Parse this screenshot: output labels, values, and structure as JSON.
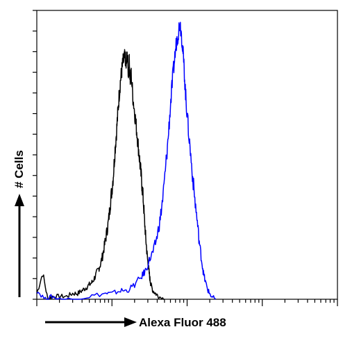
{
  "chart_data": {
    "type": "line",
    "title": "",
    "xlabel": "Alexa Fluor 488",
    "ylabel": "# Cells",
    "x_scale": "log",
    "xlim": [
      1,
      10000
    ],
    "ylim": [
      0,
      100
    ],
    "grid": false,
    "legend": "none",
    "series": [
      {
        "color": "#000000",
        "points": [
          [
            1.0,
            2
          ],
          [
            1.2,
            9
          ],
          [
            1.4,
            0
          ],
          [
            1.6,
            1
          ],
          [
            2.0,
            1
          ],
          [
            2.5,
            1
          ],
          [
            3.0,
            2
          ],
          [
            3.5,
            2
          ],
          [
            4.0,
            3
          ],
          [
            4.5,
            4
          ],
          [
            5.0,
            5
          ],
          [
            5.5,
            6
          ],
          [
            6.0,
            8
          ],
          [
            6.5,
            10
          ],
          [
            7.0,
            12
          ],
          [
            7.5,
            15
          ],
          [
            8.0,
            19
          ],
          [
            8.5,
            23
          ],
          [
            9.0,
            27
          ],
          [
            9.5,
            33
          ],
          [
            10.0,
            38
          ],
          [
            10.5,
            44
          ],
          [
            11.0,
            52
          ],
          [
            11.5,
            58
          ],
          [
            12.0,
            65
          ],
          [
            12.5,
            71
          ],
          [
            13.0,
            76
          ],
          [
            13.5,
            79
          ],
          [
            14.0,
            82
          ],
          [
            14.5,
            83
          ],
          [
            15.0,
            84
          ],
          [
            15.5,
            80
          ],
          [
            16.0,
            85
          ],
          [
            16.5,
            78
          ],
          [
            17.0,
            82
          ],
          [
            17.5,
            76
          ],
          [
            18.0,
            78
          ],
          [
            19.0,
            70
          ],
          [
            20.0,
            65
          ],
          [
            21.0,
            60
          ],
          [
            22.0,
            55
          ],
          [
            23.0,
            50
          ],
          [
            24.0,
            45
          ],
          [
            25.0,
            40
          ],
          [
            26.0,
            35
          ],
          [
            27.0,
            28
          ],
          [
            28.0,
            22
          ],
          [
            29.0,
            17
          ],
          [
            30.0,
            13
          ],
          [
            31.0,
            10
          ],
          [
            32.0,
            7
          ],
          [
            33.0,
            5
          ],
          [
            35.0,
            3
          ],
          [
            38.0,
            2
          ],
          [
            42.0,
            1
          ],
          [
            50.0,
            0
          ]
        ]
      },
      {
        "color": "#0000ff",
        "points": [
          [
            1.0,
            3
          ],
          [
            1.3,
            0
          ],
          [
            1.6,
            1
          ],
          [
            2.0,
            0
          ],
          [
            3.0,
            0
          ],
          [
            5.0,
            1
          ],
          [
            8.0,
            2
          ],
          [
            10.0,
            2
          ],
          [
            13.0,
            3
          ],
          [
            16.0,
            3
          ],
          [
            20.0,
            5
          ],
          [
            25.0,
            8
          ],
          [
            28.0,
            10
          ],
          [
            32.0,
            14
          ],
          [
            36.0,
            17
          ],
          [
            40.0,
            22
          ],
          [
            44.0,
            28
          ],
          [
            48.0,
            36
          ],
          [
            52.0,
            46
          ],
          [
            56.0,
            56
          ],
          [
            60.0,
            67
          ],
          [
            64.0,
            76
          ],
          [
            68.0,
            83
          ],
          [
            72.0,
            89
          ],
          [
            76.0,
            92
          ],
          [
            80.0,
            96
          ],
          [
            84.0,
            92
          ],
          [
            88.0,
            86
          ],
          [
            92.0,
            78
          ],
          [
            96.0,
            70
          ],
          [
            100.0,
            64
          ],
          [
            108.0,
            54
          ],
          [
            116.0,
            45
          ],
          [
            125.0,
            36
          ],
          [
            135.0,
            28
          ],
          [
            145.0,
            20
          ],
          [
            155.0,
            14
          ],
          [
            165.0,
            9
          ],
          [
            175.0,
            6
          ],
          [
            190.0,
            3
          ],
          [
            210.0,
            1
          ],
          [
            240.0,
            0
          ]
        ]
      }
    ]
  }
}
